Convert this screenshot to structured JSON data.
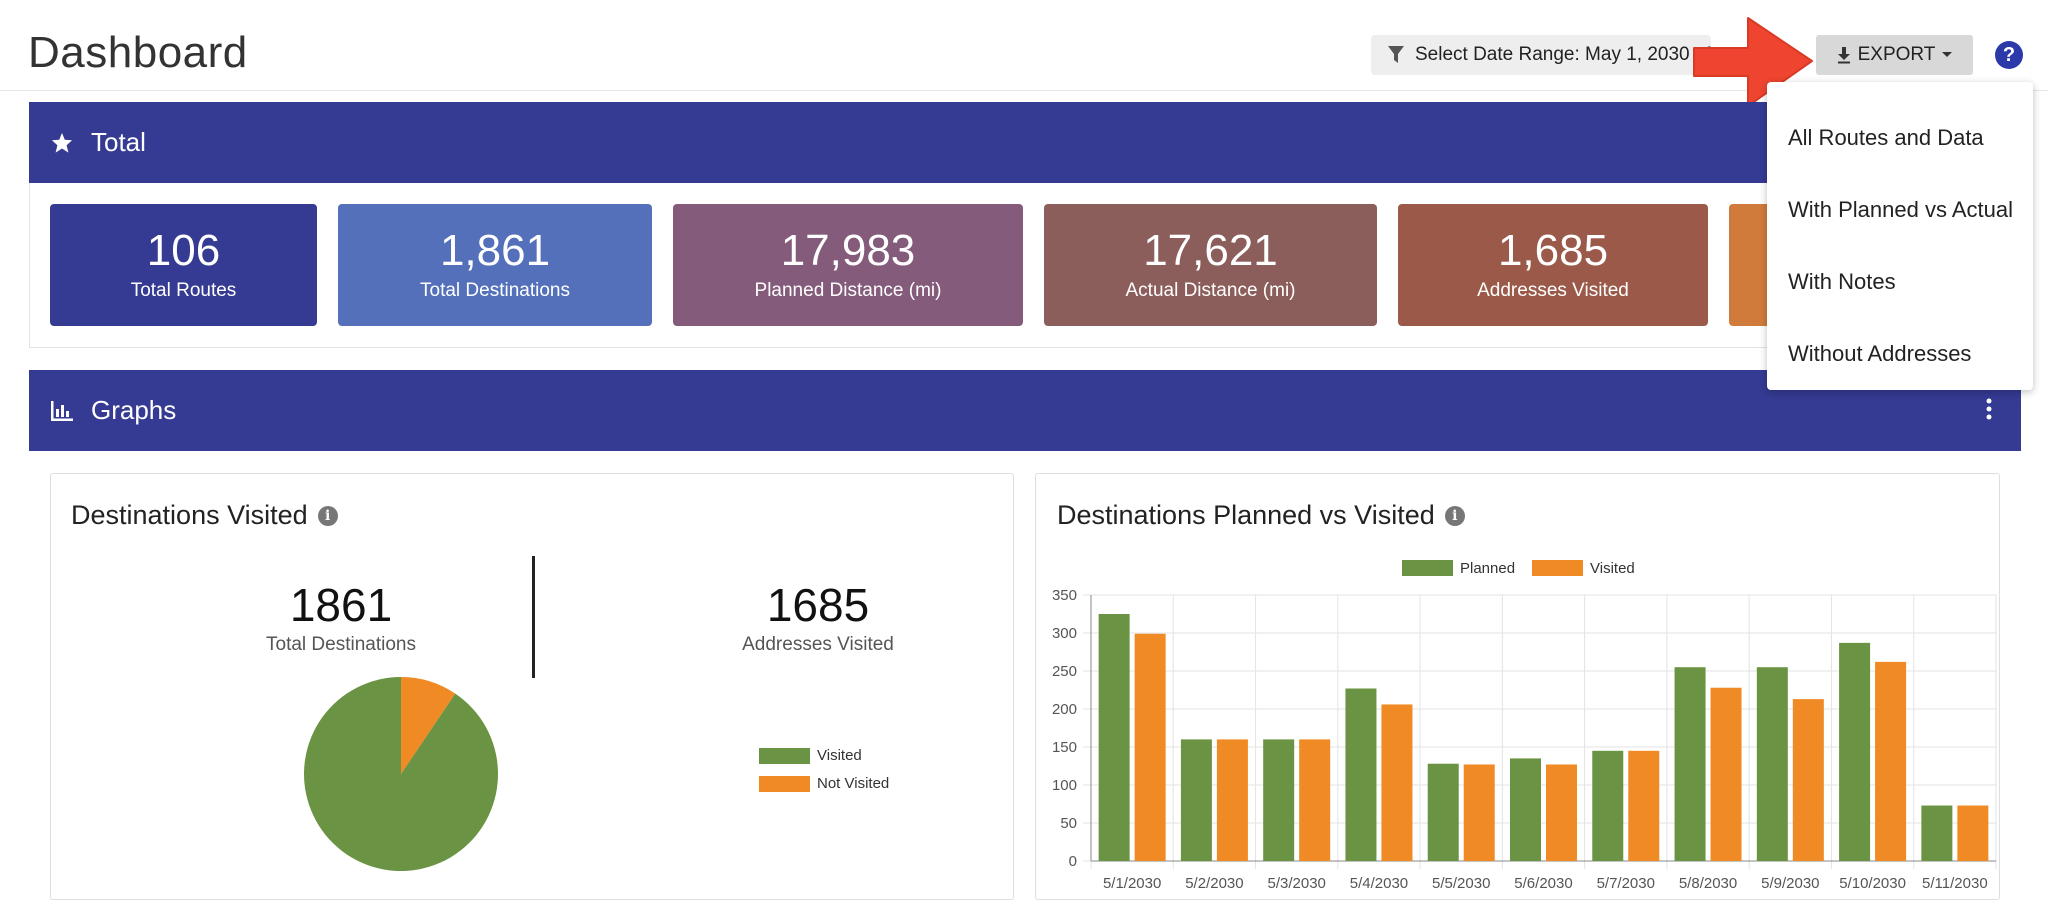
{
  "header": {
    "title": "Dashboard",
    "date_range_label": "Select Date Range: May 1, 2030 - M",
    "export_label": "EXPORT",
    "help_label": "?"
  },
  "export_menu": {
    "items": [
      "All Routes and Data",
      "With Planned vs Actual",
      "With Notes",
      "Without Addresses"
    ]
  },
  "total_panel": {
    "title": "Total",
    "cards": [
      {
        "value": "106",
        "caption": "Total Routes",
        "color": "#353a93"
      },
      {
        "value": "1,861",
        "caption": "Total Destinations",
        "color": "#5470bb"
      },
      {
        "value": "17,983",
        "caption": "Planned Distance (mi)",
        "color": "#845b7a"
      },
      {
        "value": "17,621",
        "caption": "Actual Distance (mi)",
        "color": "#8c5e5b"
      },
      {
        "value": "1,685",
        "caption": "Addresses Visited",
        "color": "#9b5a49"
      },
      {
        "value": "",
        "caption": "",
        "color": "#d07b3b"
      }
    ]
  },
  "graphs_panel": {
    "title": "Graphs"
  },
  "destinations_visited": {
    "title": "Destinations Visited",
    "total_value": "1861",
    "total_label": "Total Destinations",
    "visited_value": "1685",
    "visited_label": "Addresses Visited",
    "legend": [
      "Visited",
      "Not Visited"
    ]
  },
  "planned_vs_visited": {
    "title": "Destinations Planned vs Visited"
  },
  "colors": {
    "planned": "#6a9443",
    "visited": "#ef8a24"
  },
  "chart_data": [
    {
      "type": "pie",
      "categories": [
        "Visited",
        "Not Visited"
      ],
      "values": [
        1685,
        176
      ]
    },
    {
      "type": "bar",
      "categories": [
        "5/1/2030",
        "5/2/2030",
        "5/3/2030",
        "5/4/2030",
        "5/5/2030",
        "5/6/2030",
        "5/7/2030",
        "5/8/2030",
        "5/9/2030",
        "5/10/2030",
        "5/11/2030"
      ],
      "series": [
        {
          "name": "Planned",
          "values": [
            325,
            160,
            160,
            227,
            128,
            135,
            145,
            255,
            255,
            287,
            73
          ]
        },
        {
          "name": "Visited",
          "values": [
            299,
            160,
            160,
            206,
            127,
            127,
            145,
            228,
            213,
            262,
            73
          ]
        }
      ],
      "ylim": [
        0,
        350
      ],
      "yticks": [
        0,
        50,
        100,
        150,
        200,
        250,
        300,
        350
      ],
      "grid": true,
      "legend_position": "top-center"
    }
  ]
}
